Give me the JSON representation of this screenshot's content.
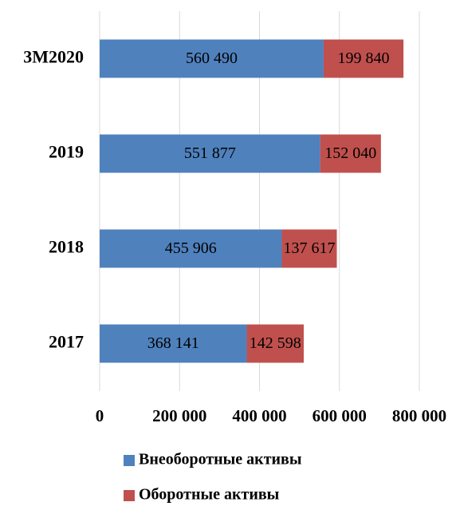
{
  "chart_data": {
    "type": "bar",
    "orientation": "horizontal",
    "stacked": true,
    "categories": [
      "3M2020",
      "2019",
      "2018",
      "2017"
    ],
    "series": [
      {
        "name": "Внеоборотные активы",
        "color": "#4f81bd",
        "values": [
          560490,
          551877,
          455906,
          368141
        ],
        "value_labels": [
          "560 490",
          "551 877",
          "455 906",
          "368 141"
        ]
      },
      {
        "name": "Оборотные активы",
        "color": "#c0504d",
        "values": [
          199840,
          152040,
          137617,
          142598
        ],
        "value_labels": [
          "199 840",
          "152 040",
          "137 617",
          "142 598"
        ]
      }
    ],
    "xlim": [
      0,
      800000
    ],
    "xticks": [
      0,
      {
        "value": 200000,
        "label": "200 000"
      },
      {
        "value": 400000,
        "label": "400 000"
      },
      {
        "value": 600000,
        "label": "600 000"
      },
      {
        "value": 800000,
        "label": "800 000"
      }
    ],
    "grid": true,
    "legend": "bottom"
  }
}
